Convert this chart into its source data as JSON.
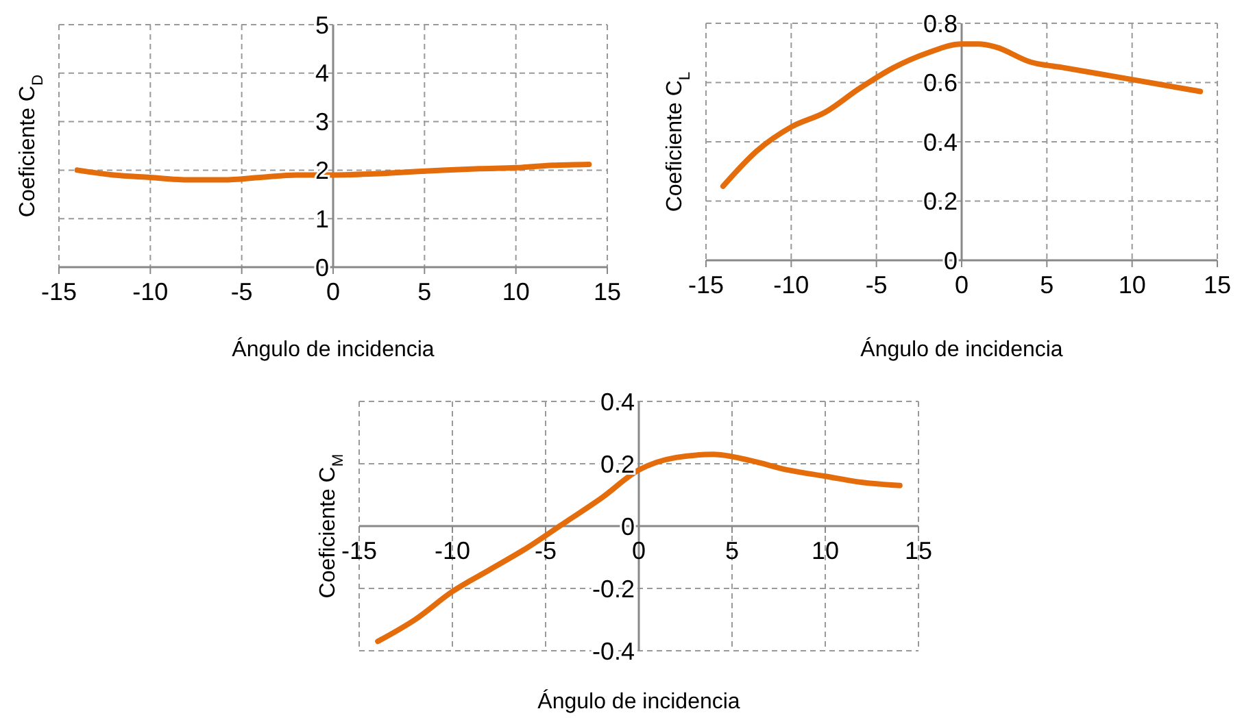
{
  "chart_data": [
    {
      "type": "line",
      "xlabel": "Ángulo de incidencia",
      "ylabel": "Coeficiente C$_{D}$",
      "x": [
        -14,
        -12,
        -10,
        -8,
        -6,
        -4,
        -2,
        0,
        2,
        4,
        6,
        8,
        10,
        12,
        14
      ],
      "series": [
        {
          "color": "#e46c0a",
          "values": [
            2.0,
            1.9,
            1.85,
            1.8,
            1.8,
            1.85,
            1.9,
            1.9,
            1.92,
            1.96,
            2.0,
            2.03,
            2.05,
            2.1,
            2.12
          ]
        }
      ],
      "xlim": [
        -15,
        15
      ],
      "xticks": [
        -15,
        -10,
        -5,
        0,
        5,
        10,
        15
      ],
      "ylim": [
        0,
        5
      ],
      "yticks": [
        0,
        1,
        2,
        3,
        4,
        5
      ],
      "grid": true,
      "marker": "none",
      "line_style": "solid"
    },
    {
      "type": "line",
      "xlabel": "Ángulo de incidencia",
      "ylabel": "Coeficiente C$_{L}$",
      "x": [
        -14,
        -12,
        -10,
        -8,
        -6,
        -4,
        -2,
        0,
        1,
        2,
        4,
        6,
        8,
        10,
        12,
        14
      ],
      "series": [
        {
          "color": "#e46c0a",
          "values": [
            0.25,
            0.37,
            0.45,
            0.5,
            0.58,
            0.65,
            0.7,
            0.73,
            0.73,
            0.72,
            0.67,
            0.65,
            0.63,
            0.61,
            0.59,
            0.57
          ]
        }
      ],
      "xlim": [
        -15,
        15
      ],
      "xticks": [
        -15,
        -10,
        -5,
        0,
        5,
        10,
        15
      ],
      "ylim": [
        0,
        0.8
      ],
      "yticks": [
        0,
        0.2,
        0.4,
        0.6,
        0.8
      ],
      "grid": true,
      "marker": "none",
      "line_style": "solid"
    },
    {
      "type": "line",
      "xlabel": "Ángulo de incidencia",
      "ylabel": "Coeficiente C$_{M}$",
      "x": [
        -14,
        -12,
        -10,
        -8,
        -6,
        -4,
        -2,
        0,
        2,
        4,
        6,
        8,
        10,
        12,
        14
      ],
      "series": [
        {
          "color": "#e46c0a",
          "values": [
            -0.37,
            -0.3,
            -0.21,
            -0.14,
            -0.07,
            0.01,
            0.09,
            0.18,
            0.22,
            0.23,
            0.21,
            0.18,
            0.16,
            0.14,
            0.13
          ]
        }
      ],
      "xlim": [
        -15,
        15
      ],
      "xticks": [
        -15,
        -10,
        -5,
        0,
        5,
        10,
        15
      ],
      "ylim": [
        -0.4,
        0.4
      ],
      "yticks": [
        -0.4,
        -0.2,
        0,
        0.2,
        0.4
      ],
      "grid": true,
      "marker": "none",
      "line_style": "solid"
    }
  ]
}
